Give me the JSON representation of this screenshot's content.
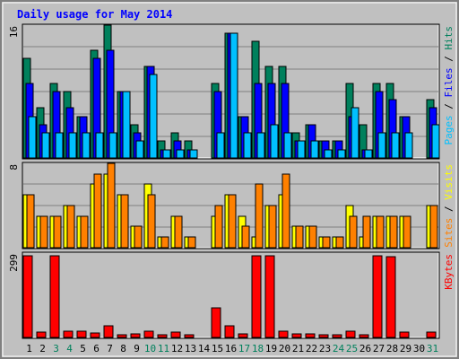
{
  "title": "Daily usage for May 2014",
  "colors": {
    "background": "#c0c0c0",
    "hits": "#00805c",
    "files": "#0000ff",
    "pages": "#00c0ff",
    "visits": "#ffff00",
    "sites": "#ff8000",
    "kbytes": "#ff0000",
    "title": "#0000ff",
    "weekend_day": "#00805c",
    "weekday": "#000000"
  },
  "legend": {
    "top": [
      {
        "text": "Pages",
        "color": "#00c0ff"
      },
      {
        "text": " / ",
        "color": "#000000"
      },
      {
        "text": "Files",
        "color": "#0000ff"
      },
      {
        "text": " / ",
        "color": "#000000"
      },
      {
        "text": "Hits",
        "color": "#00805c"
      }
    ],
    "middle": [
      {
        "text": "Sites",
        "color": "#ff8000"
      },
      {
        "text": " / ",
        "color": "#000000"
      },
      {
        "text": "Visits",
        "color": "#ffff00"
      }
    ],
    "bottom": [
      {
        "text": "KBytes",
        "color": "#ff0000"
      }
    ]
  },
  "chart_data": [
    {
      "type": "bar",
      "panel": "hits-files-pages",
      "ymax_label": "16",
      "ylim": [
        0,
        16
      ],
      "categories": [
        "1",
        "2",
        "3",
        "4",
        "5",
        "6",
        "7",
        "8",
        "9",
        "10",
        "11",
        "12",
        "13",
        "14",
        "15",
        "16",
        "17",
        "18",
        "19",
        "20",
        "21",
        "22",
        "23",
        "24",
        "25",
        "26",
        "27",
        "28",
        "29",
        "30",
        "31"
      ],
      "series": [
        {
          "name": "Hits",
          "values": [
            12,
            6,
            9,
            8,
            5,
            13,
            16,
            8,
            4,
            11,
            2,
            3,
            2,
            0,
            9,
            15,
            5,
            14,
            11,
            11,
            3,
            4,
            2,
            2,
            9,
            4,
            9,
            9,
            5,
            0,
            7
          ]
        },
        {
          "name": "Files",
          "values": [
            9,
            4,
            8,
            6,
            5,
            12,
            13,
            8,
            3,
            11,
            1,
            2,
            1,
            0,
            8,
            15,
            5,
            9,
            9,
            9,
            2,
            4,
            2,
            2,
            5,
            1,
            8,
            7,
            5,
            0,
            6
          ]
        },
        {
          "name": "Pages",
          "values": [
            5,
            3,
            3,
            3,
            3,
            3,
            3,
            8,
            2,
            10,
            1,
            1,
            1,
            0,
            3,
            15,
            3,
            3,
            4,
            3,
            2,
            2,
            1,
            1,
            6,
            1,
            3,
            3,
            3,
            0,
            4
          ]
        }
      ]
    },
    {
      "type": "bar",
      "panel": "visits-sites",
      "ymax_label": "8",
      "ylim": [
        0,
        8
      ],
      "categories": [
        "1",
        "2",
        "3",
        "4",
        "5",
        "6",
        "7",
        "8",
        "9",
        "10",
        "11",
        "12",
        "13",
        "14",
        "15",
        "16",
        "17",
        "18",
        "19",
        "20",
        "21",
        "22",
        "23",
        "24",
        "25",
        "26",
        "27",
        "28",
        "29",
        "30",
        "31"
      ],
      "series": [
        {
          "name": "Visits",
          "values": [
            5,
            3,
            3,
            4,
            3,
            6,
            7,
            5,
            2,
            6,
            1,
            3,
            1,
            0,
            3,
            5,
            3,
            1,
            4,
            5,
            2,
            2,
            1,
            1,
            4,
            1,
            3,
            3,
            3,
            0,
            4
          ]
        },
        {
          "name": "Sites",
          "values": [
            5,
            3,
            3,
            4,
            3,
            7,
            8,
            5,
            2,
            5,
            1,
            3,
            1,
            0,
            4,
            5,
            2,
            6,
            4,
            7,
            2,
            2,
            1,
            1,
            3,
            3,
            3,
            3,
            3,
            0,
            4
          ]
        }
      ]
    },
    {
      "type": "bar",
      "panel": "kbytes",
      "ymax_label": "299",
      "ylim": [
        0,
        299
      ],
      "categories": [
        "1",
        "2",
        "3",
        "4",
        "5",
        "6",
        "7",
        "8",
        "9",
        "10",
        "11",
        "12",
        "13",
        "14",
        "15",
        "16",
        "17",
        "18",
        "19",
        "20",
        "21",
        "22",
        "23",
        "24",
        "25",
        "26",
        "27",
        "28",
        "29",
        "30",
        "31"
      ],
      "series": [
        {
          "name": "KBytes",
          "values": [
            290,
            20,
            290,
            22,
            22,
            15,
            40,
            8,
            12,
            22,
            8,
            20,
            8,
            0,
            105,
            40,
            12,
            290,
            290,
            22,
            14,
            14,
            8,
            8,
            22,
            8,
            290,
            285,
            20,
            0,
            20
          ]
        }
      ]
    }
  ],
  "x_labels": [
    {
      "text": "1",
      "weekend": false
    },
    {
      "text": "2",
      "weekend": false
    },
    {
      "text": "3",
      "weekend": true
    },
    {
      "text": "4",
      "weekend": true
    },
    {
      "text": "5",
      "weekend": false
    },
    {
      "text": "6",
      "weekend": false
    },
    {
      "text": "7",
      "weekend": false
    },
    {
      "text": "8",
      "weekend": false
    },
    {
      "text": "9",
      "weekend": false
    },
    {
      "text": "10",
      "weekend": true
    },
    {
      "text": "11",
      "weekend": true
    },
    {
      "text": "12",
      "weekend": false
    },
    {
      "text": "13",
      "weekend": false
    },
    {
      "text": "14",
      "weekend": false
    },
    {
      "text": "15",
      "weekend": false
    },
    {
      "text": "16",
      "weekend": false
    },
    {
      "text": "17",
      "weekend": true
    },
    {
      "text": "18",
      "weekend": true
    },
    {
      "text": "19",
      "weekend": false
    },
    {
      "text": "20",
      "weekend": false
    },
    {
      "text": "21",
      "weekend": false
    },
    {
      "text": "22",
      "weekend": false
    },
    {
      "text": "23",
      "weekend": false
    },
    {
      "text": "24",
      "weekend": true
    },
    {
      "text": "25",
      "weekend": true
    },
    {
      "text": "26",
      "weekend": false
    },
    {
      "text": "27",
      "weekend": false
    },
    {
      "text": "28",
      "weekend": false
    },
    {
      "text": "29",
      "weekend": false
    },
    {
      "text": "30",
      "weekend": false
    },
    {
      "text": "31",
      "weekend": true
    }
  ]
}
